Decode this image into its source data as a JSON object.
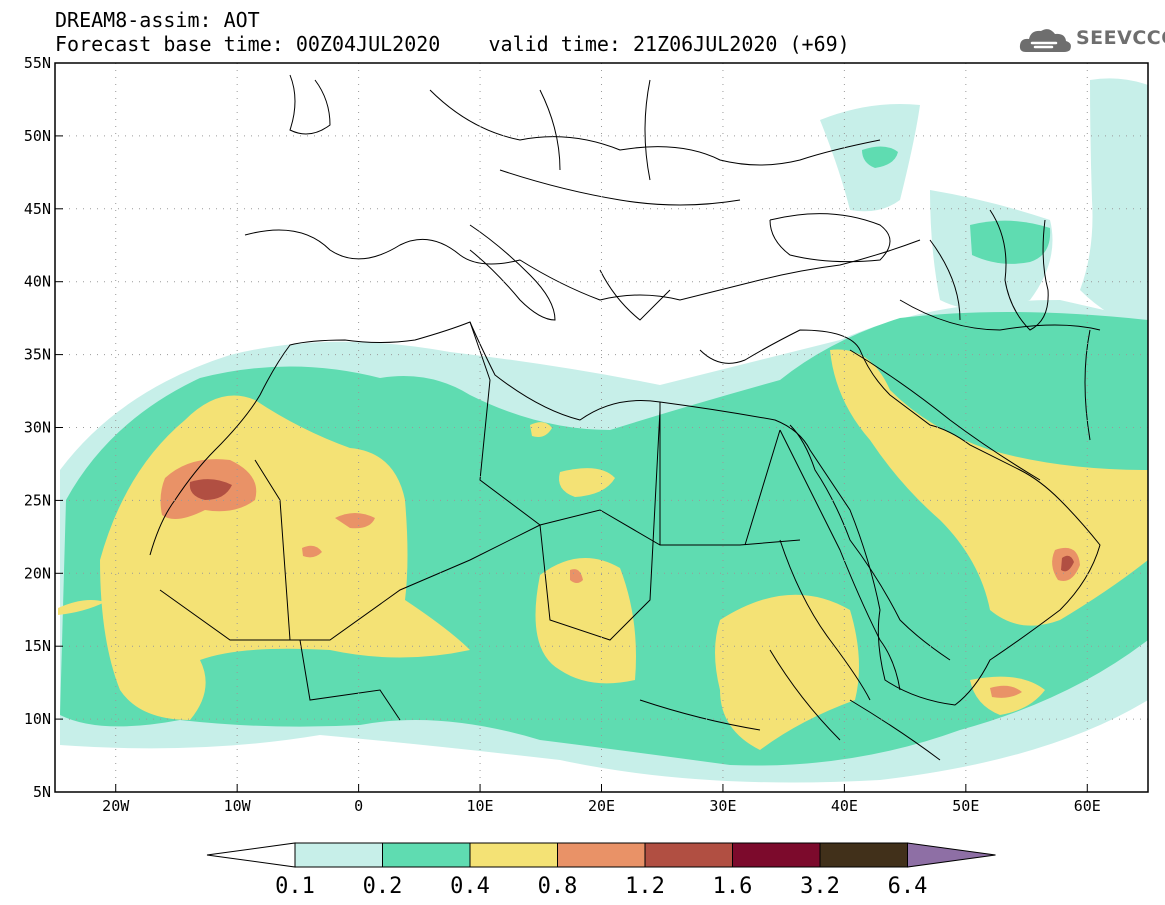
{
  "header": {
    "line1": "DREAM8-assim: AOT",
    "base_label": "Forecast base time: 00Z04JUL2020",
    "valid_label": "valid time: 21Z06JUL2020 (+69)"
  },
  "logo": {
    "text": "SEEVCCC",
    "icon": "cloud-icon"
  },
  "map": {
    "lon_range": [
      -25,
      65
    ],
    "lat_range": [
      5,
      55
    ],
    "x_ticks": [
      {
        "lon": -20,
        "label": "20W"
      },
      {
        "lon": -10,
        "label": "10W"
      },
      {
        "lon": 0,
        "label": "0"
      },
      {
        "lon": 10,
        "label": "10E"
      },
      {
        "lon": 20,
        "label": "20E"
      },
      {
        "lon": 30,
        "label": "30E"
      },
      {
        "lon": 40,
        "label": "40E"
      },
      {
        "lon": 50,
        "label": "50E"
      },
      {
        "lon": 60,
        "label": "60E"
      }
    ],
    "y_ticks": [
      {
        "lat": 5,
        "label": "5N"
      },
      {
        "lat": 10,
        "label": "10N"
      },
      {
        "lat": 15,
        "label": "15N"
      },
      {
        "lat": 20,
        "label": "20N"
      },
      {
        "lat": 25,
        "label": "25N"
      },
      {
        "lat": 30,
        "label": "30N"
      },
      {
        "lat": 35,
        "label": "35N"
      },
      {
        "lat": 40,
        "label": "40N"
      },
      {
        "lat": 45,
        "label": "45N"
      },
      {
        "lat": 50,
        "label": "50N"
      },
      {
        "lat": 55,
        "label": "55N"
      }
    ],
    "grid": "dotted"
  },
  "colorbar": {
    "labels": [
      "0.1",
      "0.2",
      "0.4",
      "0.8",
      "1.2",
      "1.6",
      "3.2",
      "6.4"
    ],
    "colors": [
      "#c7efe9",
      "#5fdcb1",
      "#f4e275",
      "#e99267",
      "#b14f42",
      "#7c0a2c",
      "#41301a"
    ],
    "below_color": "#ffffff",
    "above_color": "#8e6fa5"
  },
  "palette": {
    "light": "#c7efe9",
    "teal": "#5fdcb1",
    "yellow": "#f4e275",
    "orange": "#e99267",
    "brown": "#b14f42",
    "darkred": "#7c0a2c"
  }
}
